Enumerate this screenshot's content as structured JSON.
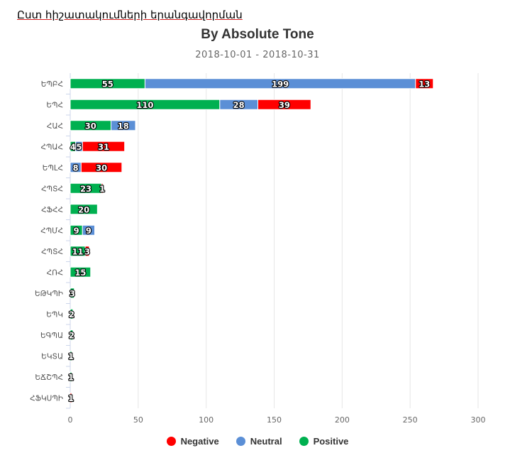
{
  "page": {
    "heading": "Ըստ հիշատակումների երանգավորման"
  },
  "chart_data": {
    "type": "bar",
    "orientation": "horizontal",
    "stacked": true,
    "title": "By Absolute Tone",
    "subtitle": "2018-10-01 - 2018-10-31",
    "categories": [
      "ԵՊԲՀ",
      "ԵՊՀ",
      "ՀԱՀ",
      "ՀՊԱՀ",
      "ԵՊԼՀ",
      "ՀՊՏՀ",
      "ՀՖՀՀ",
      "ՀՊՄՀ",
      "ՀՊՏՀ",
      "ՀՌՀ",
      "ԵԹԿՊԻ",
      "ԵՊԿ",
      "ԵԳՊԱ",
      "ԵԿՏԱ",
      "ԵՃՇՊՀ",
      "ՀՖԿՍՊԻ"
    ],
    "series": [
      {
        "name": "Positive",
        "color": "#00b050",
        "values": [
          55,
          110,
          30,
          4,
          0,
          23,
          20,
          9,
          11,
          15,
          3,
          2,
          2,
          1,
          1,
          0
        ]
      },
      {
        "name": "Neutral",
        "color": "#5b8fd6",
        "values": [
          199,
          28,
          18,
          5,
          8,
          0,
          0,
          9,
          0,
          0,
          0,
          0,
          0,
          0,
          0,
          0
        ]
      },
      {
        "name": "Negative",
        "color": "#ff0000",
        "values": [
          13,
          39,
          0,
          31,
          30,
          1,
          0,
          0,
          3,
          0,
          0,
          0,
          0,
          0,
          0,
          1
        ]
      }
    ],
    "legend_order": [
      "Negative",
      "Neutral",
      "Positive"
    ],
    "xlim": [
      0,
      300
    ],
    "xticks": [
      0,
      50,
      100,
      150,
      200,
      250,
      300
    ],
    "grid": true,
    "legend_position": "bottom"
  }
}
